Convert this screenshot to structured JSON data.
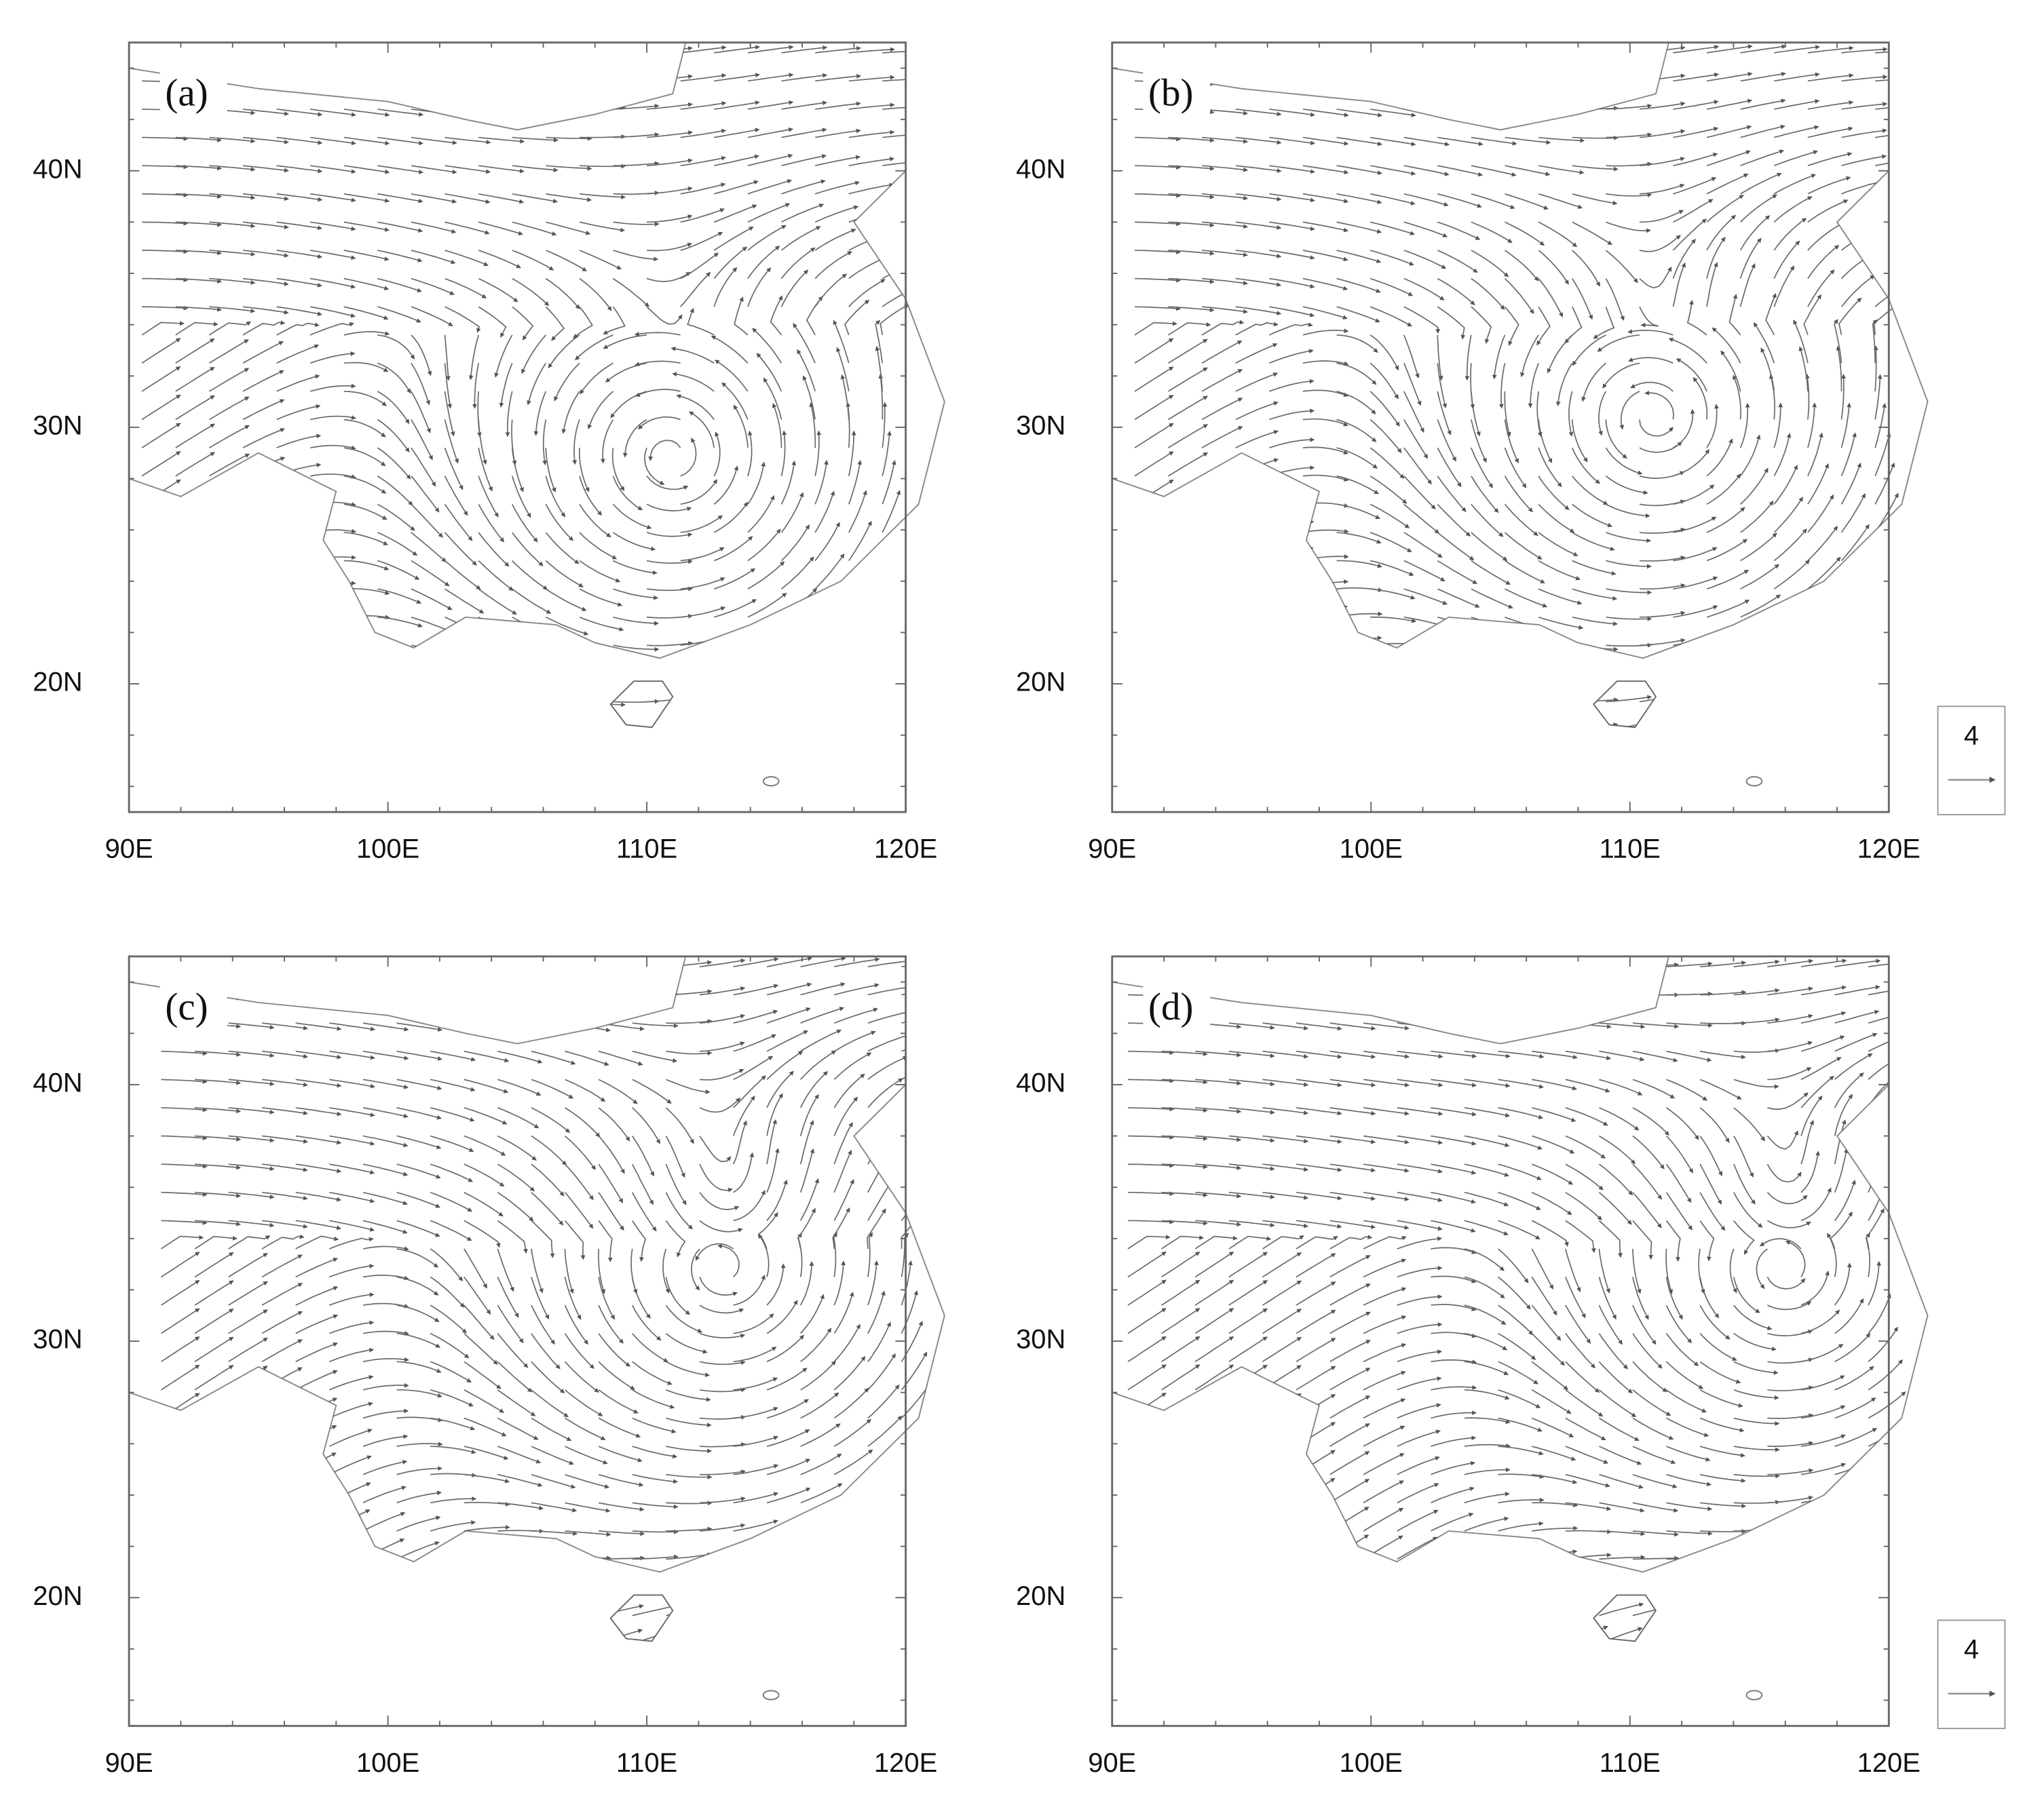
{
  "panels": [
    {
      "label": "(a)"
    },
    {
      "label": "(b)",
      "reference_label": "4"
    },
    {
      "label": "(c)"
    },
    {
      "label": "(d)",
      "reference_label": "4"
    }
  ],
  "x_tick_labels": [
    "90E",
    "100E",
    "110E",
    "120E"
  ],
  "y_tick_labels": [
    "20N",
    "30N",
    "40N"
  ]
}
